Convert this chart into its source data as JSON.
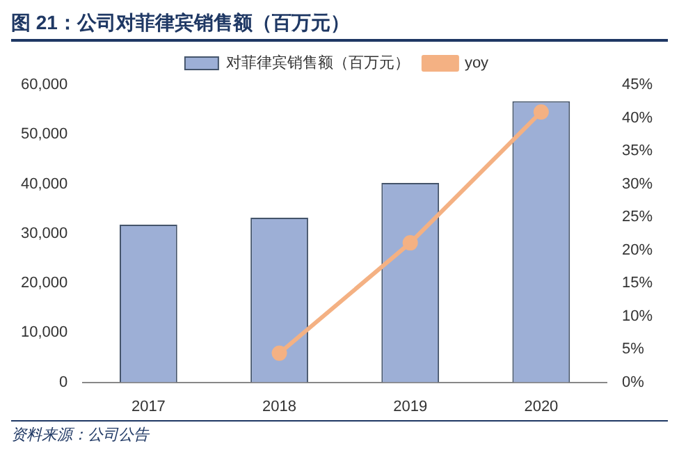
{
  "chart_data": {
    "type": "bar",
    "title": "图 21：公司对菲律宾销售额（百万元）",
    "categories": [
      "2017",
      "2018",
      "2019",
      "2020"
    ],
    "series": [
      {
        "name": "对菲律宾销售额（百万元）",
        "color": "#9dafd6",
        "values": [
          31800,
          33200,
          40200,
          56700
        ]
      },
      {
        "name": "yoy",
        "type": "line",
        "axis": "y2",
        "color": "#f4b183",
        "values": [
          null,
          4.4,
          21.1,
          40.9
        ]
      }
    ],
    "ylim": [
      0,
      60000
    ],
    "yticks": [
      {
        "value": 0,
        "label": "0"
      },
      {
        "value": 10000,
        "label": "10,000"
      },
      {
        "value": 20000,
        "label": "20,000"
      },
      {
        "value": 30000,
        "label": "30,000"
      },
      {
        "value": 40000,
        "label": "40,000"
      },
      {
        "value": 50000,
        "label": "50,000"
      },
      {
        "value": 60000,
        "label": "60,000"
      }
    ],
    "y2lim": [
      0,
      45
    ],
    "y2ticks": [
      {
        "value": 0,
        "label": "0%"
      },
      {
        "value": 5,
        "label": "5%"
      },
      {
        "value": 10,
        "label": "10%"
      },
      {
        "value": 15,
        "label": "15%"
      },
      {
        "value": 20,
        "label": "20%"
      },
      {
        "value": 25,
        "label": "25%"
      },
      {
        "value": 30,
        "label": "30%"
      },
      {
        "value": 35,
        "label": "35%"
      },
      {
        "value": 40,
        "label": "40%"
      },
      {
        "value": 45,
        "label": "45%"
      }
    ],
    "legend": "top",
    "grid": false,
    "marker": "circle",
    "annotations": [
      "资料来源：公司公告"
    ]
  }
}
